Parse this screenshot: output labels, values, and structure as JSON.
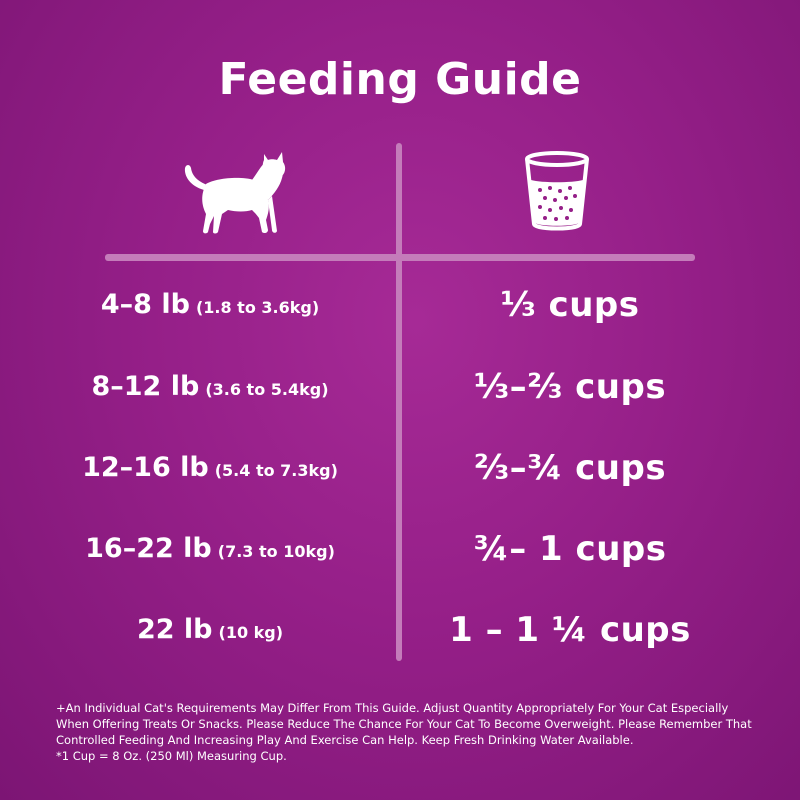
{
  "title": "Feeding Guide",
  "header": {
    "left_icon": "cat-icon",
    "right_icon": "measuring-cup-icon"
  },
  "rows": [
    {
      "weight": "4–8 lb",
      "metric": "(1.8 to 3.6kg)",
      "amount": "⅓ cups"
    },
    {
      "weight": "8–12 lb",
      "metric": "(3.6 to 5.4kg)",
      "amount": "⅓–⅔ cups"
    },
    {
      "weight": "12–16 lb",
      "metric": "(5.4 to 7.3kg)",
      "amount": "⅔–¾ cups"
    },
    {
      "weight": "16–22 lb",
      "metric": "(7.3 to 10kg)",
      "amount": "¾– 1 cups"
    },
    {
      "weight": "22 lb",
      "metric": "(10 kg)",
      "amount": "1 – 1 ¼ cups"
    }
  ],
  "footnote": {
    "line1": "+An Individual Cat's Requirements May Differ From This Guide.  Adjust Quantity Appropriately For Your Cat Especially When Offering Treats Or Snacks.  Please Reduce The Chance For Your Cat To Become Overweight.  Please Remember That Controlled Feeding And Increasing Play And Exercise Can Help.  Keep Fresh Drinking Water Available.",
    "line2": "*1 Cup = 8 Oz. (250 Ml) Measuring Cup."
  },
  "colors": {
    "background": "#951f88",
    "divider": "#c47cba",
    "text": "#ffffff"
  }
}
